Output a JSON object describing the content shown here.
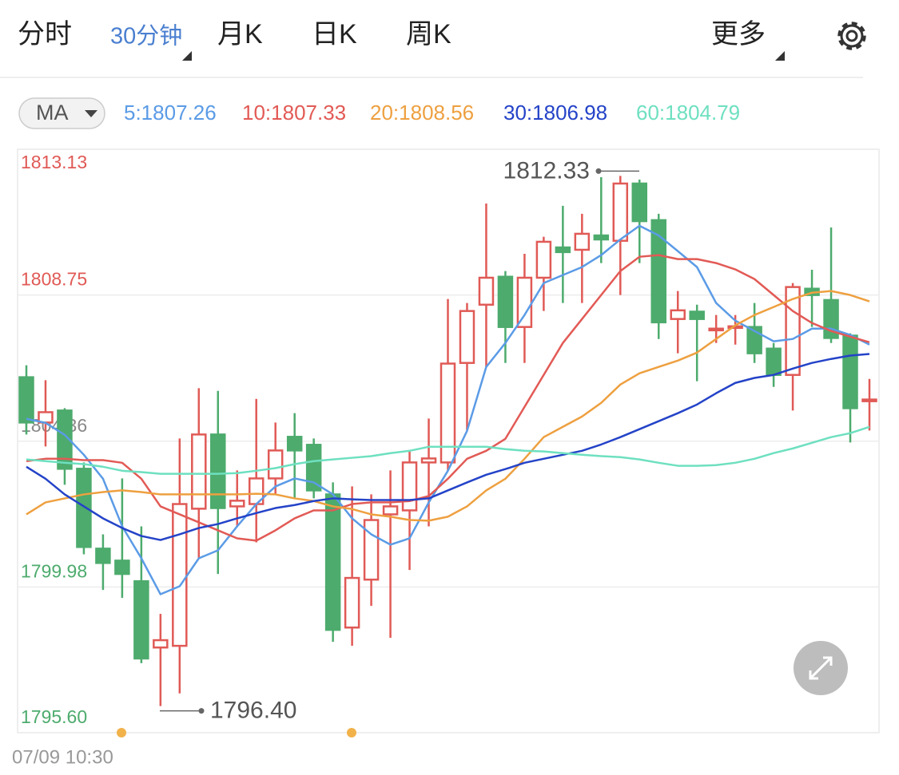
{
  "tabs": [
    "分时",
    "30分钟",
    "月K",
    "日K",
    "周K"
  ],
  "active_tab": 1,
  "more": "更多",
  "ma_button": "MA",
  "chart_data": {
    "type": "candlestick",
    "up_color": "#e05a56",
    "down_color": "#4dab6d",
    "ylim": [
      1795.6,
      1813.13
    ],
    "yticks": [
      1813.13,
      1808.75,
      1804.36,
      1799.98,
      {
        "value": 1795.6,
        "label": "1795.60"
      }
    ],
    "ytick_colors": [
      "#e05a56",
      "#e05a56",
      "#888888",
      "#4dab6d",
      "#4dab6d"
    ],
    "grid": true,
    "start_time": "07/09 10:30",
    "open": [
      1806.28,
      1804.92,
      1805.28,
      1803.53,
      1801.13,
      1800.77,
      1800.15,
      1798.16,
      1798.21,
      1802.33,
      1804.56,
      1802.4,
      1802.47,
      1803.24,
      1804.49,
      1804.25,
      1802.76,
      1798.76,
      1800.2,
      1802.16,
      1802.28,
      1803.72,
      1803.72,
      1806.71,
      1808.46,
      1809.3,
      1807.79,
      1809.27,
      1810.18,
      1810.11,
      1810.54,
      1810.38,
      1812.1,
      1811.0,
      1808.03,
      1808.25,
      1807.69,
      1807.77,
      1807.79,
      1807.14,
      1806.35,
      1808.94,
      1808.6,
      1807.53,
      1805.56
    ],
    "high": [
      1806.64,
      1806.19,
      1805.35,
      1803.72,
      1801.56,
      1803.24,
      1801.8,
      1799.17,
      1804.44,
      1805.95,
      1805.87,
      1803.48,
      1805.63,
      1804.92,
      1805.2,
      1804.44,
      1803.12,
      1803.0,
      1802.76,
      1803.48,
      1804.08,
      1805.04,
      1808.63,
      1808.51,
      1811.5,
      1809.47,
      1809.99,
      1810.5,
      1811.43,
      1811.19,
      1812.29,
      1812.33,
      1812.22,
      1811.19,
      1808.87,
      1808.46,
      1808.15,
      1808.15,
      1808.51,
      1807.31,
      1809.11,
      1809.51,
      1810.78,
      1807.6,
      1806.23
    ],
    "low": [
      1804.56,
      1804.2,
      1803.05,
      1800.96,
      1799.89,
      1799.65,
      1797.69,
      1796.4,
      1796.78,
      1800.84,
      1800.37,
      1801.8,
      1801.32,
      1802.76,
      1802.64,
      1802.64,
      1798.33,
      1798.21,
      1799.41,
      1798.45,
      1800.49,
      1801.8,
      1803.48,
      1804.68,
      1806.59,
      1806.71,
      1806.71,
      1808.27,
      1808.51,
      1808.51,
      1809.71,
      1808.75,
      1809.71,
      1807.43,
      1807.0,
      1806.16,
      1807.31,
      1807.26,
      1806.71,
      1805.99,
      1805.28,
      1807.79,
      1807.31,
      1804.32,
      1804.68
    ],
    "close": [
      1804.92,
      1805.23,
      1803.53,
      1801.18,
      1800.7,
      1800.37,
      1797.83,
      1798.38,
      1802.47,
      1804.56,
      1802.35,
      1802.57,
      1803.24,
      1804.08,
      1804.08,
      1802.88,
      1798.69,
      1800.25,
      1801.99,
      1802.4,
      1803.72,
      1803.84,
      1806.69,
      1808.27,
      1809.27,
      1807.79,
      1809.27,
      1810.35,
      1810.04,
      1810.59,
      1810.42,
      1812.1,
      1810.97,
      1807.93,
      1808.29,
      1808.03,
      1807.74,
      1807.81,
      1807.0,
      1806.35,
      1808.99,
      1808.75,
      1807.46,
      1805.35,
      1805.61
    ],
    "series": [
      {
        "name": "5:1807.26",
        "color": "#5b9be6",
        "values": [
          1805.03,
          1804.91,
          1804.55,
          1803.95,
          1803.23,
          1801.8,
          1800.84,
          1799.76,
          1800.0,
          1800.84,
          1801.08,
          1801.8,
          1802.47,
          1803.0,
          1803.24,
          1803.12,
          1802.76,
          1802.04,
          1801.56,
          1801.25,
          1801.44,
          1802.52,
          1803.47,
          1804.67,
          1806.59,
          1807.31,
          1808.15,
          1809.11,
          1809.35,
          1809.59,
          1809.95,
          1810.42,
          1810.83,
          1810.54,
          1810.07,
          1809.59,
          1808.51,
          1807.98,
          1807.67,
          1807.36,
          1807.43,
          1807.74,
          1807.74,
          1807.55,
          1807.26
        ]
      },
      {
        "name": "10:1807.33",
        "color": "#e25a55",
        "values": [
          1803.76,
          1803.83,
          1803.83,
          1803.79,
          1803.79,
          1803.71,
          1803.23,
          1802.4,
          1802.16,
          1801.92,
          1801.68,
          1801.44,
          1801.37,
          1801.68,
          1802.04,
          1802.28,
          1802.28,
          1802.47,
          1802.52,
          1802.52,
          1802.56,
          1802.71,
          1803.23,
          1803.83,
          1804.07,
          1804.43,
          1805.39,
          1806.35,
          1807.31,
          1808.03,
          1808.75,
          1809.47,
          1809.9,
          1809.95,
          1809.83,
          1809.83,
          1809.71,
          1809.52,
          1809.23,
          1808.75,
          1808.27,
          1807.91,
          1807.67,
          1807.5,
          1807.33
        ]
      },
      {
        "name": "20:1808.56",
        "color": "#eea040",
        "values": [
          1802.16,
          1802.52,
          1802.64,
          1802.76,
          1802.83,
          1802.88,
          1802.83,
          1802.76,
          1802.76,
          1802.76,
          1802.76,
          1802.76,
          1802.78,
          1802.76,
          1802.64,
          1802.56,
          1802.4,
          1802.32,
          1802.16,
          1802.09,
          1801.99,
          1801.97,
          1802.09,
          1802.4,
          1802.88,
          1803.23,
          1803.83,
          1804.48,
          1804.79,
          1805.1,
          1805.51,
          1806.06,
          1806.4,
          1806.59,
          1806.78,
          1807.02,
          1807.43,
          1807.84,
          1808.15,
          1808.39,
          1808.63,
          1808.82,
          1808.87,
          1808.75,
          1808.56
        ]
      },
      {
        "name": "30:1806.98",
        "color": "#2443c8",
        "values": [
          1803.59,
          1803.23,
          1802.76,
          1802.4,
          1802.04,
          1801.75,
          1801.51,
          1801.39,
          1801.56,
          1801.75,
          1801.87,
          1802.04,
          1802.2,
          1802.35,
          1802.44,
          1802.56,
          1802.64,
          1802.61,
          1802.59,
          1802.59,
          1802.59,
          1802.64,
          1802.88,
          1803.12,
          1803.35,
          1803.52,
          1803.71,
          1803.83,
          1803.95,
          1804.07,
          1804.26,
          1804.48,
          1804.72,
          1804.96,
          1805.2,
          1805.46,
          1805.8,
          1806.11,
          1806.26,
          1806.35,
          1806.54,
          1806.71,
          1806.83,
          1806.93,
          1806.98
        ]
      },
      {
        "name": "60:1804.79",
        "color": "#6ee0c0",
        "values": [
          1803.81,
          1803.76,
          1803.71,
          1803.67,
          1803.59,
          1803.47,
          1803.43,
          1803.38,
          1803.38,
          1803.38,
          1803.38,
          1803.4,
          1803.47,
          1803.55,
          1803.67,
          1803.76,
          1803.81,
          1803.86,
          1803.91,
          1804.0,
          1804.07,
          1804.19,
          1804.19,
          1804.19,
          1804.19,
          1804.12,
          1804.07,
          1804.05,
          1804.0,
          1803.95,
          1803.91,
          1803.88,
          1803.81,
          1803.71,
          1803.62,
          1803.62,
          1803.64,
          1803.71,
          1803.83,
          1804.0,
          1804.14,
          1804.31,
          1804.48,
          1804.6,
          1804.79
        ]
      }
    ],
    "annotations": [
      {
        "value": 1812.33,
        "label": "1812.33"
      },
      {
        "value": 1796.4,
        "label": "1796.40"
      }
    ]
  }
}
